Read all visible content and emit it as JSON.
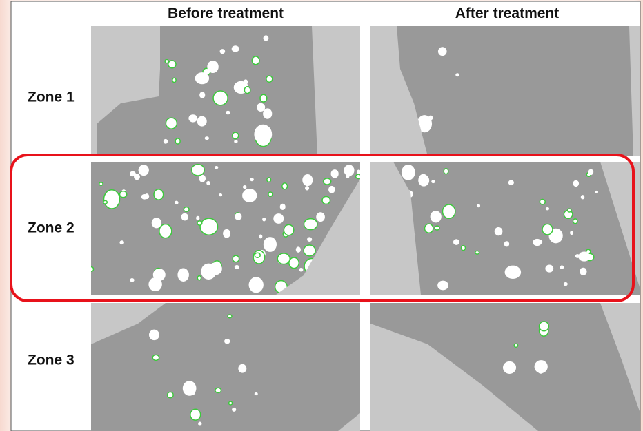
{
  "header": {
    "columns": [
      "Before treatment",
      "After treatment"
    ]
  },
  "rows": [
    {
      "label": "Zone 1"
    },
    {
      "label": "Zone 2"
    },
    {
      "label": "Zone 3"
    }
  ]
}
